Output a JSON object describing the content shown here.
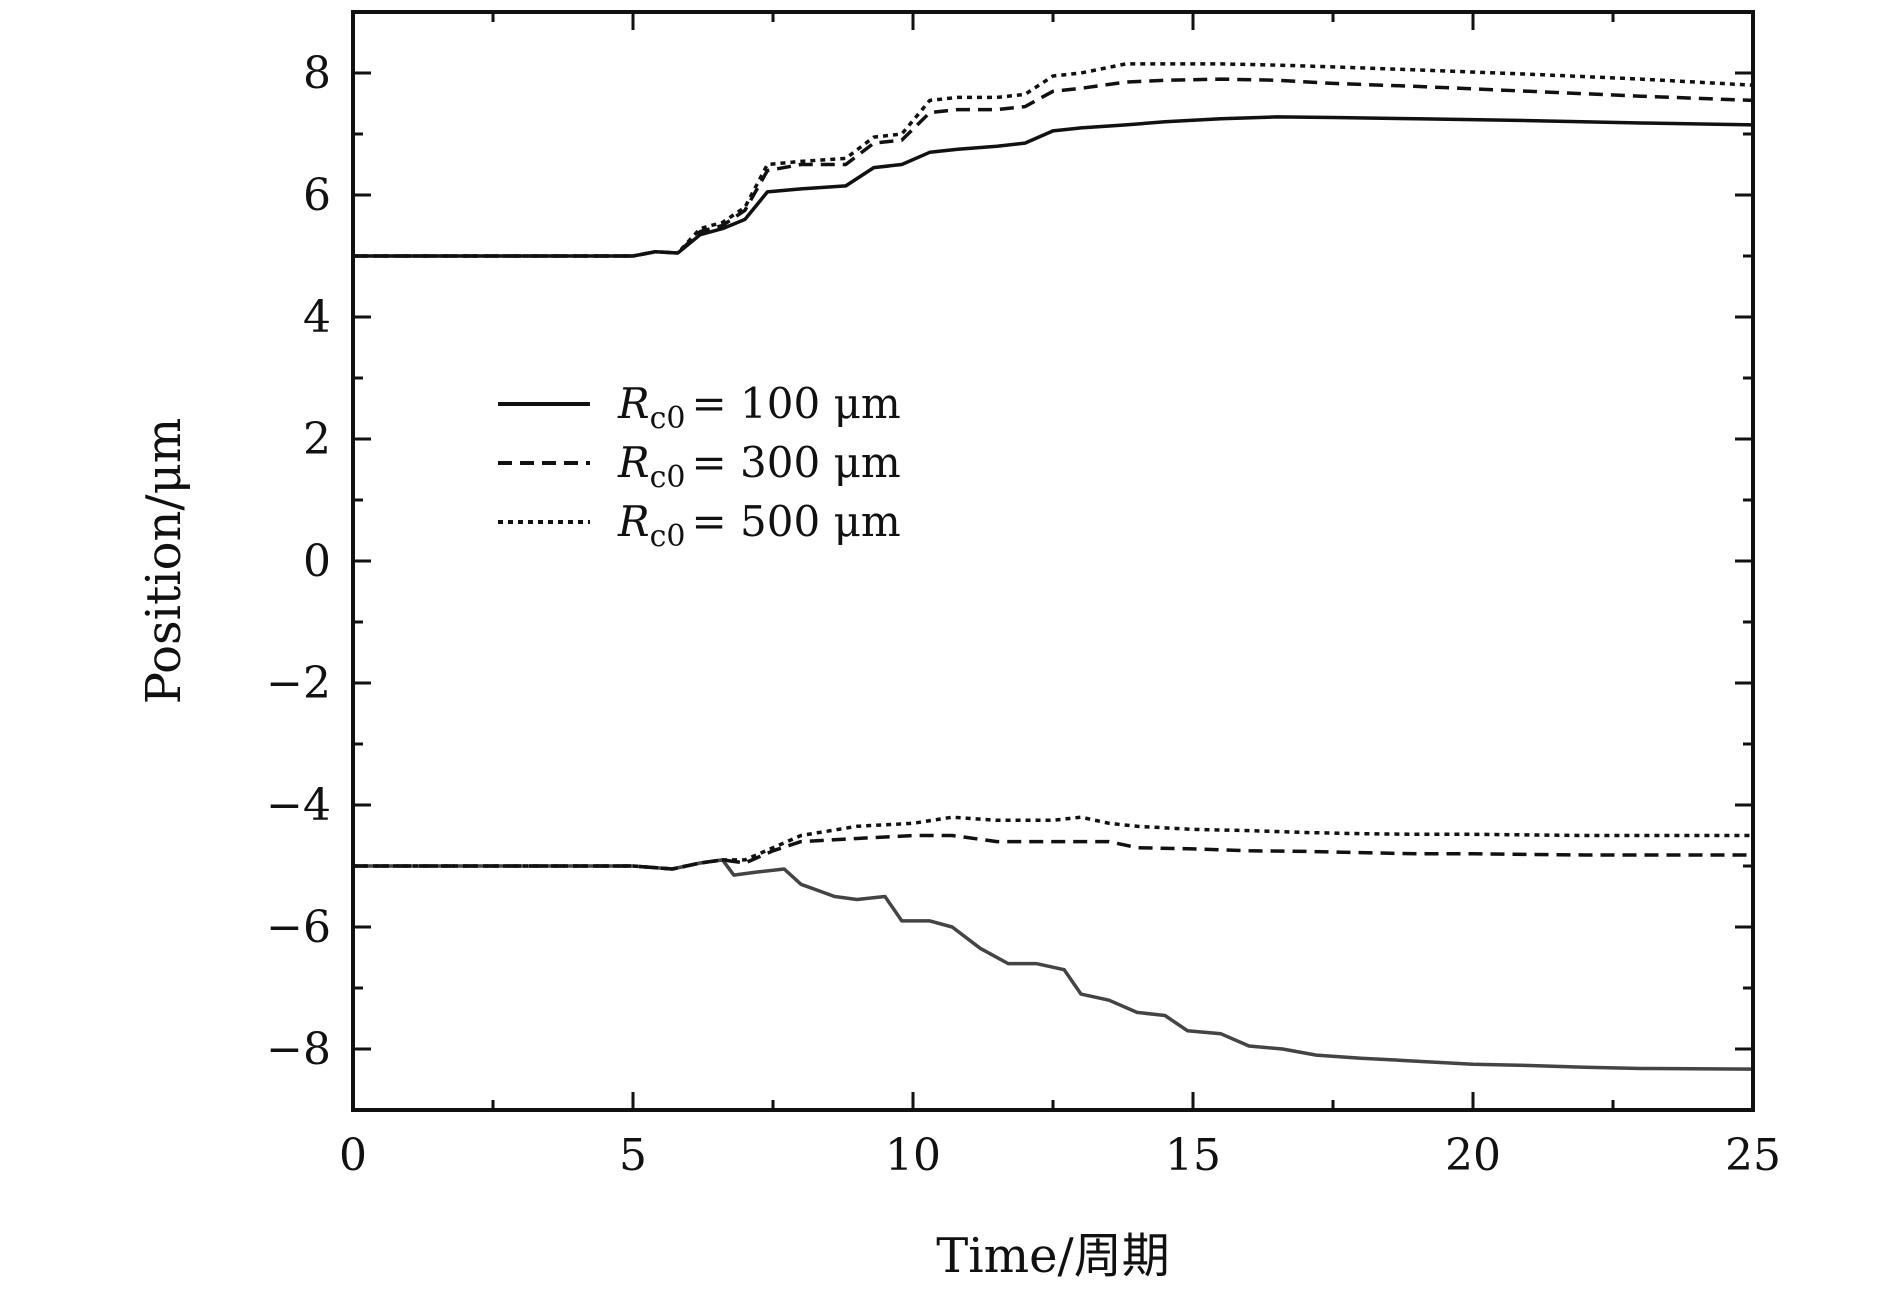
{
  "chart_data": {
    "type": "line",
    "title": "",
    "xlabel": "Time/周期",
    "ylabel": "Position/μm",
    "xlim": [
      0,
      25
    ],
    "ylim": [
      -9,
      9
    ],
    "xticks": [
      0,
      5,
      10,
      15,
      20,
      25
    ],
    "yticks": [
      -8,
      -6,
      -4,
      -2,
      0,
      2,
      4,
      6,
      8
    ],
    "xtick_labels": [
      "0",
      "5",
      "10",
      "15",
      "20",
      "25"
    ],
    "ytick_labels": [
      "−8",
      "−6",
      "−4",
      "−2",
      "0",
      "2",
      "4",
      "6",
      "8"
    ],
    "legend": {
      "position": "center-left",
      "entries": [
        {
          "symbol": "R",
          "subscript": "c0",
          "text": "= 100 μm",
          "style": "solid"
        },
        {
          "symbol": "R",
          "subscript": "c0",
          "text": "= 300 μm",
          "style": "dashed"
        },
        {
          "symbol": "R",
          "subscript": "c0",
          "text": "= 500 μm",
          "style": "dotted"
        }
      ]
    },
    "series": [
      {
        "name": "Rc0 = 100 μm (upper)",
        "style": "solid",
        "color": "#111111",
        "x": [
          0,
          5,
          5.4,
          5.8,
          6.2,
          6.6,
          7.0,
          7.4,
          8.0,
          8.8,
          9.3,
          9.8,
          10.3,
          10.8,
          11.5,
          12.0,
          12.5,
          13.0,
          13.8,
          14.5,
          15.5,
          16.5,
          17.5,
          19,
          21,
          23,
          25
        ],
        "y": [
          5.0,
          5.0,
          5.07,
          5.05,
          5.35,
          5.45,
          5.6,
          6.05,
          6.1,
          6.15,
          6.45,
          6.5,
          6.7,
          6.75,
          6.8,
          6.85,
          7.05,
          7.1,
          7.15,
          7.2,
          7.25,
          7.28,
          7.27,
          7.25,
          7.22,
          7.18,
          7.15
        ]
      },
      {
        "name": "Rc0 = 300 μm (upper)",
        "style": "dashed",
        "color": "#111111",
        "x": [
          0,
          5,
          5.4,
          5.8,
          6.2,
          6.6,
          7.0,
          7.4,
          8.0,
          8.8,
          9.3,
          9.8,
          10.3,
          10.8,
          11.5,
          12.0,
          12.5,
          13.0,
          13.8,
          14.5,
          15.5,
          16.5,
          17.5,
          19,
          21,
          23,
          25
        ],
        "y": [
          5.0,
          5.0,
          5.07,
          5.05,
          5.4,
          5.5,
          5.75,
          6.4,
          6.5,
          6.5,
          6.85,
          6.9,
          7.35,
          7.4,
          7.4,
          7.45,
          7.7,
          7.75,
          7.85,
          7.88,
          7.9,
          7.88,
          7.83,
          7.78,
          7.7,
          7.62,
          7.55
        ]
      },
      {
        "name": "Rc0 = 500 μm (upper)",
        "style": "dotted",
        "color": "#111111",
        "x": [
          0,
          5,
          5.4,
          5.8,
          6.2,
          6.6,
          7.0,
          7.4,
          8.0,
          8.8,
          9.3,
          9.8,
          10.3,
          10.8,
          11.5,
          12.0,
          12.5,
          13.0,
          13.8,
          14.5,
          15.5,
          16.5,
          17.5,
          19,
          21,
          23,
          25
        ],
        "y": [
          5.0,
          5.0,
          5.07,
          5.05,
          5.45,
          5.55,
          5.8,
          6.5,
          6.55,
          6.6,
          6.95,
          7.0,
          7.55,
          7.6,
          7.6,
          7.65,
          7.95,
          8.0,
          8.15,
          8.15,
          8.15,
          8.13,
          8.1,
          8.05,
          7.98,
          7.9,
          7.8
        ]
      },
      {
        "name": "Rc0 = 100 μm (lower)",
        "style": "solid",
        "color": "#444444",
        "x": [
          0,
          5,
          5.7,
          6.2,
          6.6,
          6.8,
          7.2,
          7.7,
          8.0,
          8.6,
          9.0,
          9.5,
          9.8,
          10.3,
          10.7,
          11.2,
          11.7,
          12.2,
          12.7,
          13.0,
          13.5,
          14.0,
          14.5,
          14.9,
          15.5,
          16.0,
          16.6,
          17.2,
          18,
          19,
          20,
          21,
          22,
          23,
          25
        ],
        "y": [
          -5.0,
          -5.0,
          -5.05,
          -4.95,
          -4.9,
          -5.15,
          -5.1,
          -5.05,
          -5.3,
          -5.5,
          -5.55,
          -5.5,
          -5.9,
          -5.9,
          -6.0,
          -6.35,
          -6.6,
          -6.6,
          -6.7,
          -7.1,
          -7.2,
          -7.4,
          -7.45,
          -7.7,
          -7.75,
          -7.95,
          -8.0,
          -8.1,
          -8.15,
          -8.2,
          -8.25,
          -8.27,
          -8.3,
          -8.32,
          -8.33
        ]
      },
      {
        "name": "Rc0 = 300 μm (lower)",
        "style": "dashed",
        "color": "#111111",
        "x": [
          0,
          5,
          5.7,
          6.2,
          6.6,
          7.0,
          7.5,
          8.0,
          9.0,
          10.0,
          10.7,
          11.5,
          12.5,
          13.5,
          14.0,
          15,
          16,
          17,
          18,
          19,
          20,
          22,
          25
        ],
        "y": [
          -5.0,
          -5.0,
          -5.05,
          -4.95,
          -4.9,
          -4.95,
          -4.75,
          -4.6,
          -4.55,
          -4.5,
          -4.5,
          -4.6,
          -4.6,
          -4.6,
          -4.7,
          -4.72,
          -4.75,
          -4.76,
          -4.78,
          -4.8,
          -4.8,
          -4.82,
          -4.82
        ]
      },
      {
        "name": "Rc0 = 500 μm (lower)",
        "style": "dotted",
        "color": "#111111",
        "x": [
          0,
          5,
          5.7,
          6.2,
          6.6,
          7.0,
          7.5,
          8.0,
          9.0,
          10.0,
          10.7,
          11.5,
          12.5,
          13.0,
          13.5,
          14.0,
          15,
          16,
          17,
          18,
          19,
          20,
          22,
          25
        ],
        "y": [
          -5.0,
          -5.0,
          -5.05,
          -4.95,
          -4.9,
          -4.9,
          -4.7,
          -4.5,
          -4.35,
          -4.3,
          -4.2,
          -4.25,
          -4.25,
          -4.2,
          -4.3,
          -4.35,
          -4.4,
          -4.42,
          -4.45,
          -4.47,
          -4.48,
          -4.48,
          -4.5,
          -4.5
        ]
      }
    ]
  }
}
